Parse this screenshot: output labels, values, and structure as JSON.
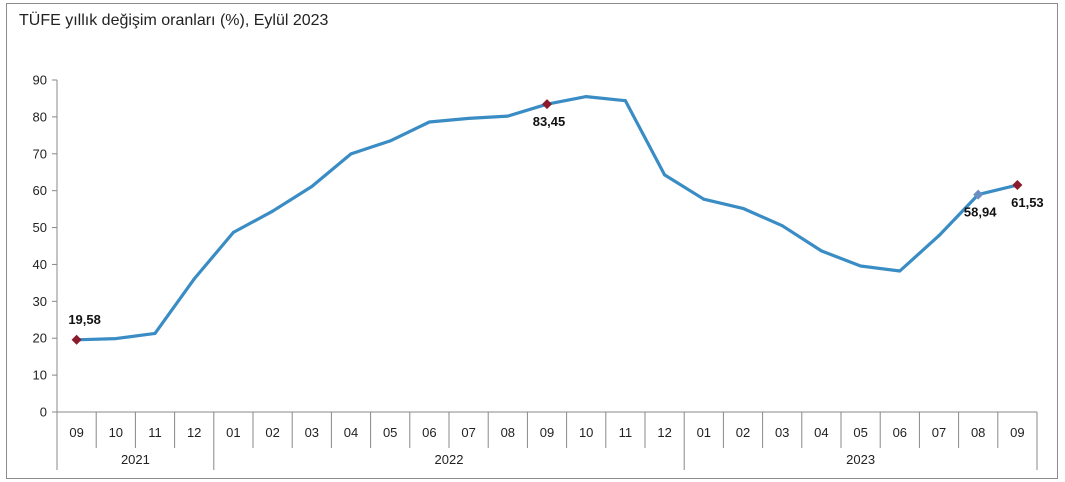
{
  "title": "TÜFE yıllık değişim oranları (%), Eylül 2023",
  "chart_data": {
    "type": "line",
    "title": "TÜFE yıllık değişim oranları (%), Eylül 2023",
    "xlabel": "",
    "ylabel": "",
    "ylim": [
      0,
      90
    ],
    "yticks": [
      0,
      10,
      20,
      30,
      40,
      50,
      60,
      70,
      80,
      90
    ],
    "grid": false,
    "categories": [
      "09",
      "10",
      "11",
      "12",
      "01",
      "02",
      "03",
      "04",
      "05",
      "06",
      "07",
      "08",
      "09",
      "10",
      "11",
      "12",
      "01",
      "02",
      "03",
      "04",
      "05",
      "06",
      "07",
      "08",
      "09"
    ],
    "year_groups": [
      {
        "label": "2021",
        "count": 4
      },
      {
        "label": "2022",
        "count": 12
      },
      {
        "label": "2023",
        "count": 9
      }
    ],
    "series": [
      {
        "color": "#3a8cc4",
        "values": [
          19.58,
          19.89,
          21.31,
          36.08,
          48.69,
          54.44,
          61.14,
          69.97,
          73.5,
          78.62,
          79.6,
          80.21,
          83.45,
          85.51,
          84.39,
          64.27,
          57.68,
          55.18,
          50.51,
          43.68,
          39.59,
          38.21,
          47.83,
          58.94,
          61.53
        ]
      }
    ],
    "highlighted_points": [
      {
        "index": 0,
        "label": "19,58",
        "marker_color": "#8b1a2b"
      },
      {
        "index": 12,
        "label": "83,45",
        "marker_color": "#8b1a2b"
      },
      {
        "index": 23,
        "label": "58,94",
        "marker_color": "#6b8fc4"
      },
      {
        "index": 24,
        "label": "61,53",
        "marker_color": "#8b1a2b"
      }
    ]
  }
}
